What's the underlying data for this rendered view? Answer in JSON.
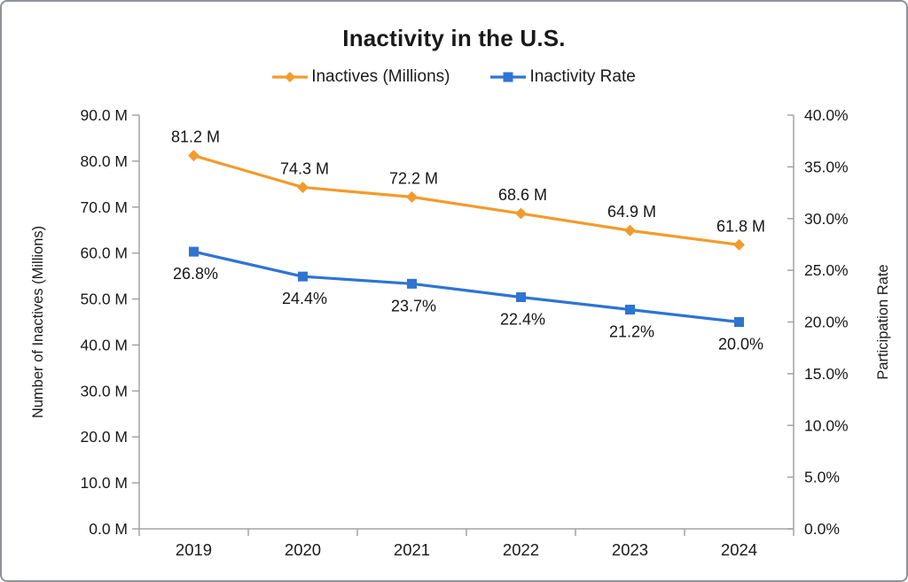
{
  "title": "Inactivity in the U.S.",
  "chart_data": {
    "type": "line",
    "title": "Inactivity in the U.S.",
    "categories": [
      "2019",
      "2020",
      "2021",
      "2022",
      "2023",
      "2024"
    ],
    "series": [
      {
        "name": "Inactives (Millions)",
        "axis": "left",
        "color": "#F29B2C",
        "marker": "diamond",
        "values": [
          81.2,
          74.3,
          72.2,
          68.6,
          64.9,
          61.8
        ],
        "labels": [
          "81.2 M",
          "74.3 M",
          "72.2 M",
          "68.6 M",
          "64.9 M",
          "61.8 M"
        ],
        "label_position": "above"
      },
      {
        "name": "Inactivity Rate",
        "axis": "right",
        "color": "#2E74D3",
        "marker": "square",
        "values": [
          26.8,
          24.4,
          23.7,
          22.4,
          21.2,
          20.0
        ],
        "labels": [
          "26.8%",
          "24.4%",
          "23.7%",
          "22.4%",
          "21.2%",
          "20.0%"
        ],
        "label_position": "below"
      }
    ],
    "left_axis": {
      "title": "Number of Inactives (Millions)",
      "min": 0,
      "max": 90,
      "tick_step": 10,
      "ticks": [
        "0.0 M",
        "10.0 M",
        "20.0 M",
        "30.0 M",
        "40.0 M",
        "50.0 M",
        "60.0 M",
        "70.0 M",
        "80.0 M",
        "90.0 M"
      ]
    },
    "right_axis": {
      "title": "Participation Rate",
      "min": 0,
      "max": 40,
      "tick_step": 5,
      "ticks": [
        "0.0%",
        "5.0%",
        "10.0%",
        "15.0%",
        "20.0%",
        "25.0%",
        "30.0%",
        "35.0%",
        "40.0%"
      ]
    },
    "grid": false,
    "legend_position": "top",
    "colors": {
      "axis_line": "#A3A3A3",
      "text": "#1A1A1A"
    }
  }
}
